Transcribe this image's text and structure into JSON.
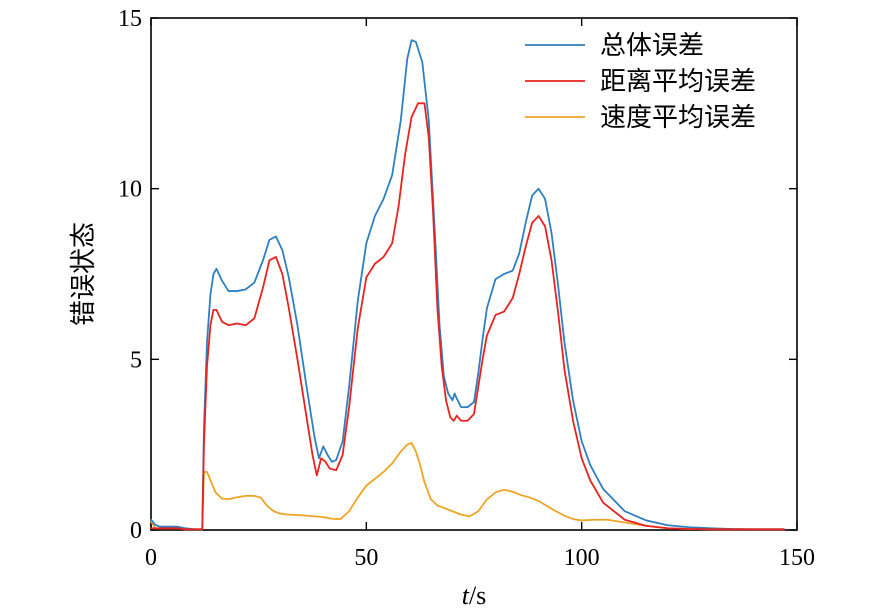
{
  "chart_data": {
    "type": "line",
    "xlabel_var": "t",
    "xlabel_unit": "/s",
    "ylabel": "错误状态",
    "xlim": [
      0,
      150
    ],
    "ylim": [
      0,
      15
    ],
    "xticks": [
      0,
      50,
      100,
      150
    ],
    "yticks": [
      0,
      5,
      10,
      15
    ],
    "grid": false,
    "legend_position": "top-right",
    "series": [
      {
        "name": "总体误差",
        "color": "#2f7fc1",
        "x": [
          0,
          1,
          2,
          4,
          6,
          8,
          10,
          11.9,
          12.3,
          13,
          13.8,
          14.5,
          15.2,
          16.5,
          18,
          20,
          22,
          24,
          26,
          27.5,
          29,
          30.5,
          32,
          34,
          36,
          38,
          39,
          40,
          41,
          42,
          43,
          44.5,
          46,
          48,
          50,
          52,
          54,
          56,
          58,
          59.5,
          60.5,
          61.5,
          63,
          64.5,
          66,
          67,
          68,
          69,
          70,
          70.5,
          71,
          72,
          73.5,
          75,
          76,
          77,
          78,
          80,
          82,
          84,
          85.5,
          87,
          88.5,
          90,
          91.5,
          93,
          94.5,
          96,
          98,
          100,
          102,
          105,
          110,
          115,
          120,
          125,
          130,
          135,
          140,
          147
        ],
        "y": [
          0.3,
          0.15,
          0.1,
          0.1,
          0.1,
          0.05,
          0.02,
          0.02,
          3.0,
          5.5,
          6.9,
          7.5,
          7.65,
          7.3,
          7.0,
          7.0,
          7.05,
          7.25,
          7.9,
          8.5,
          8.6,
          8.2,
          7.4,
          6.0,
          4.3,
          2.7,
          2.1,
          2.45,
          2.2,
          2.0,
          2.05,
          2.6,
          4.2,
          6.7,
          8.4,
          9.2,
          9.7,
          10.4,
          12.0,
          13.8,
          14.35,
          14.3,
          13.7,
          12.0,
          8.5,
          6.0,
          4.5,
          4.0,
          3.8,
          4.0,
          3.85,
          3.6,
          3.6,
          3.75,
          4.6,
          5.6,
          6.5,
          7.35,
          7.5,
          7.6,
          8.1,
          9.0,
          9.8,
          10.0,
          9.7,
          8.7,
          7.2,
          5.5,
          3.8,
          2.6,
          1.9,
          1.2,
          0.55,
          0.28,
          0.14,
          0.08,
          0.05,
          0.03,
          0.02,
          0.02
        ]
      },
      {
        "name": "距离平均误差",
        "color": "#e8231f",
        "x": [
          0,
          1,
          2,
          4,
          6,
          8,
          10,
          11.9,
          12.3,
          13,
          13.8,
          14.5,
          15.2,
          16.5,
          18,
          20,
          22,
          24,
          26,
          27.5,
          29,
          30.5,
          32,
          34,
          36,
          37.5,
          38.5,
          39.5,
          40.5,
          41.5,
          43,
          44.5,
          46,
          48,
          50,
          52,
          54,
          56,
          57.5,
          59,
          60.5,
          62,
          63.5,
          64.5,
          65.5,
          66.5,
          67.5,
          68.5,
          69.5,
          70.3,
          71,
          72,
          73.5,
          75,
          76,
          77,
          78,
          80,
          82,
          84,
          85.5,
          87,
          88.5,
          90,
          91.5,
          93,
          94.5,
          96,
          98,
          100,
          102,
          105,
          110,
          115,
          120,
          125,
          130,
          135,
          140,
          147
        ],
        "y": [
          0.05,
          0.05,
          0.05,
          0.05,
          0.05,
          0.02,
          0.02,
          0.02,
          2.5,
          4.8,
          6.0,
          6.45,
          6.45,
          6.1,
          6.0,
          6.05,
          6.0,
          6.2,
          7.1,
          7.9,
          8.0,
          7.5,
          6.5,
          5.0,
          3.4,
          2.2,
          1.6,
          2.1,
          2.0,
          1.8,
          1.75,
          2.2,
          3.6,
          5.9,
          7.4,
          7.8,
          8.0,
          8.4,
          9.5,
          11.0,
          12.1,
          12.5,
          12.5,
          11.5,
          9.3,
          6.5,
          4.8,
          3.8,
          3.3,
          3.2,
          3.35,
          3.2,
          3.2,
          3.4,
          4.2,
          5.0,
          5.7,
          6.3,
          6.4,
          6.8,
          7.5,
          8.3,
          9.0,
          9.2,
          8.9,
          7.9,
          6.4,
          4.7,
          3.2,
          2.1,
          1.45,
          0.8,
          0.3,
          0.12,
          0.05,
          0.03,
          0.02,
          0.02,
          0.02,
          0.02
        ]
      },
      {
        "name": "速度平均误差",
        "color": "#eea425",
        "x": [
          0,
          0.5,
          1,
          2,
          4,
          6,
          8,
          10,
          11.9,
          12.3,
          13,
          14,
          15,
          16.5,
          18,
          20,
          22,
          24,
          25.5,
          27,
          28.5,
          30,
          32,
          34,
          36,
          38,
          40,
          42,
          44,
          46,
          48,
          50,
          52,
          54,
          56,
          58,
          59.5,
          60.5,
          61.5,
          62.5,
          63.5,
          65,
          66.5,
          68,
          70,
          72,
          74,
          76,
          78,
          80,
          82,
          84,
          86,
          88,
          90,
          92,
          94,
          96,
          98,
          100,
          103,
          106,
          110,
          115,
          120,
          125,
          130,
          140,
          147
        ],
        "y": [
          0.25,
          0.15,
          0.05,
          0.05,
          0.05,
          0.05,
          0.02,
          0.02,
          0.02,
          1.7,
          1.7,
          1.4,
          1.1,
          0.92,
          0.9,
          0.96,
          1.0,
          1.0,
          0.95,
          0.7,
          0.55,
          0.48,
          0.45,
          0.44,
          0.42,
          0.4,
          0.38,
          0.33,
          0.32,
          0.55,
          0.95,
          1.3,
          1.5,
          1.7,
          1.95,
          2.3,
          2.5,
          2.55,
          2.3,
          1.9,
          1.4,
          0.9,
          0.72,
          0.65,
          0.55,
          0.45,
          0.4,
          0.55,
          0.9,
          1.1,
          1.18,
          1.12,
          1.02,
          0.95,
          0.85,
          0.7,
          0.55,
          0.42,
          0.32,
          0.28,
          0.3,
          0.3,
          0.22,
          0.12,
          0.05,
          0.03,
          0.02,
          0.02,
          0.02
        ]
      }
    ]
  }
}
